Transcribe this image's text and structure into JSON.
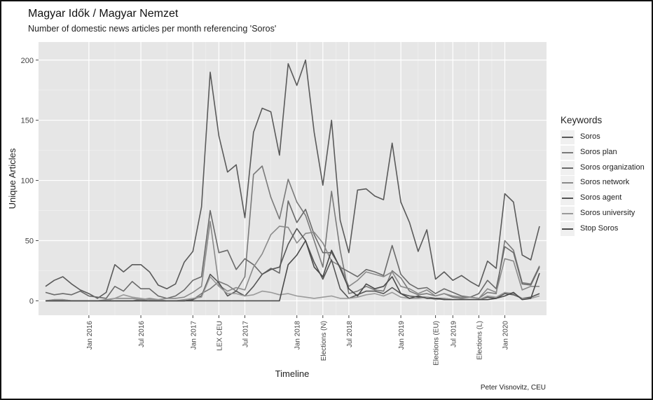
{
  "header": {
    "title": "Magyar Idők / Magyar Nemzet",
    "subtitle": "Number of domestic news articles per month referencing 'Soros'"
  },
  "credit": "Peter Visnovitz, CEU",
  "chart_data": {
    "type": "line",
    "title": "Magyar Idők / Magyar Nemzet",
    "subtitle": "Number of domestic news articles per month referencing 'Soros'",
    "xlabel": "Timeline",
    "ylabel": "Unique Articles",
    "ylim": [
      -12,
      215
    ],
    "yticks": [
      0,
      50,
      100,
      150,
      200
    ],
    "grid": true,
    "legend": {
      "title": "Keywords",
      "position": "right"
    },
    "x_tick_labels": [
      "Jan 2016",
      "Jul 2016",
      "Jan 2017",
      "LEX CEU",
      "Jul 2017",
      "Jan 2018",
      "Elections (N)",
      "Jul 2018",
      "Jan 2019",
      "Elections (EU)",
      "Jul 2019",
      "Elections (L)",
      "Jan 2020"
    ],
    "x_tick_pos": [
      5,
      11,
      17,
      20,
      23,
      29,
      32,
      35,
      41,
      45,
      47,
      50,
      53
    ],
    "x": [
      "Aug 2015",
      "Sep 2015",
      "Oct 2015",
      "Nov 2015",
      "Dec 2015",
      "Jan 2016",
      "Feb 2016",
      "Mar 2016",
      "Apr 2016",
      "May 2016",
      "Jun 2016",
      "Jul 2016",
      "Aug 2016",
      "Sep 2016",
      "Oct 2016",
      "Nov 2016",
      "Dec 2016",
      "Jan 2017",
      "Feb 2017",
      "Mar 2017",
      "Apr 2017",
      "May 2017",
      "Jun 2017",
      "Jul 2017",
      "Aug 2017",
      "Sep 2017",
      "Oct 2017",
      "Nov 2017",
      "Dec 2017",
      "Jan 2018",
      "Feb 2018",
      "Mar 2018",
      "Apr 2018",
      "May 2018",
      "Jun 2018",
      "Jul 2018",
      "Aug 2018",
      "Sep 2018",
      "Oct 2018",
      "Nov 2018",
      "Dec 2018",
      "Jan 2019",
      "Feb 2019",
      "Mar 2019",
      "Apr 2019",
      "May 2019",
      "Jun 2019",
      "Jul 2019",
      "Aug 2019",
      "Sep 2019",
      "Oct 2019",
      "Nov 2019",
      "Dec 2019",
      "Jan 2020",
      "Feb 2020",
      "Mar 2020",
      "Apr 2020",
      "May 2020"
    ],
    "series": [
      {
        "name": "Soros",
        "color": "#5a5a5a",
        "values": [
          12,
          17,
          20,
          14,
          9,
          6,
          2,
          7,
          30,
          24,
          30,
          30,
          24,
          13,
          10,
          14,
          32,
          41,
          78,
          190,
          137,
          107,
          113,
          69,
          140,
          160,
          157,
          121,
          197,
          179,
          200,
          140,
          96,
          150,
          67,
          40,
          92,
          93,
          87,
          84,
          131,
          82,
          65,
          41,
          59,
          18,
          24,
          17,
          21,
          16,
          12,
          33,
          27,
          89,
          82,
          38,
          34,
          62
        ]
      },
      {
        "name": "Soros plan",
        "color": "#7a7a7a",
        "values": [
          0,
          0,
          0,
          0,
          0,
          0,
          0,
          0,
          0,
          0,
          0,
          1,
          0,
          0,
          0,
          0,
          0,
          1,
          6,
          10,
          16,
          13,
          8,
          20,
          105,
          112,
          86,
          68,
          101,
          82,
          71,
          50,
          28,
          91,
          42,
          6,
          8,
          12,
          9,
          8,
          25,
          19,
          8,
          5,
          6,
          4,
          6,
          3,
          2,
          3,
          2,
          7,
          6,
          50,
          42,
          15,
          14,
          29
        ]
      },
      {
        "name": "Soros organization",
        "color": "#6a6a6a",
        "values": [
          7,
          5,
          6,
          5,
          8,
          4,
          3,
          2,
          12,
          8,
          16,
          10,
          10,
          4,
          2,
          4,
          9,
          17,
          20,
          75,
          40,
          42,
          26,
          35,
          30,
          22,
          27,
          23,
          83,
          65,
          76,
          55,
          40,
          40,
          28,
          24,
          20,
          26,
          24,
          21,
          46,
          22,
          14,
          10,
          11,
          6,
          10,
          7,
          4,
          3,
          6,
          17,
          10,
          45,
          40,
          14,
          13,
          28
        ]
      },
      {
        "name": "Soros network",
        "color": "#8a8a8a",
        "values": [
          0,
          1,
          1,
          0,
          0,
          0,
          0,
          1,
          2,
          2,
          2,
          1,
          2,
          1,
          2,
          2,
          3,
          7,
          12,
          66,
          13,
          8,
          11,
          9,
          28,
          39,
          55,
          62,
          61,
          48,
          56,
          57,
          48,
          33,
          29,
          12,
          17,
          24,
          22,
          20,
          24,
          12,
          10,
          6,
          9,
          4,
          6,
          4,
          3,
          3,
          2,
          10,
          7,
          35,
          33,
          9,
          12,
          12
        ]
      },
      {
        "name": "Soros agent",
        "color": "#555555",
        "values": [
          0,
          0,
          0,
          0,
          0,
          0,
          0,
          0,
          0,
          0,
          0,
          0,
          0,
          0,
          0,
          0,
          0,
          1,
          4,
          22,
          15,
          4,
          8,
          4,
          12,
          22,
          26,
          28,
          47,
          60,
          50,
          32,
          18,
          34,
          10,
          2,
          5,
          8,
          8,
          6,
          11,
          6,
          4,
          3,
          3,
          2,
          2,
          1,
          1,
          1,
          1,
          3,
          2,
          6,
          5,
          2,
          3,
          6
        ]
      },
      {
        "name": "Soros university",
        "color": "#9a9a9a",
        "values": [
          0,
          1,
          1,
          0,
          0,
          0,
          0,
          0,
          2,
          5,
          3,
          2,
          1,
          1,
          0,
          0,
          1,
          2,
          3,
          20,
          12,
          6,
          6,
          4,
          5,
          8,
          7,
          5,
          6,
          4,
          3,
          2,
          3,
          4,
          2,
          2,
          3,
          5,
          6,
          4,
          7,
          3,
          2,
          2,
          3,
          1,
          2,
          1,
          1,
          1,
          1,
          4,
          3,
          7,
          6,
          2,
          2,
          4
        ]
      },
      {
        "name": "Stop Soros",
        "color": "#4a4a4a",
        "values": [
          0,
          0,
          0,
          0,
          0,
          0,
          0,
          0,
          0,
          0,
          0,
          0,
          0,
          0,
          0,
          0,
          0,
          0,
          0,
          0,
          0,
          0,
          0,
          0,
          0,
          0,
          0,
          0,
          30,
          38,
          50,
          28,
          20,
          42,
          27,
          10,
          4,
          14,
          10,
          12,
          20,
          6,
          2,
          4,
          2,
          2,
          1,
          1,
          1,
          1,
          1,
          1,
          2,
          4,
          7,
          1,
          2,
          23
        ]
      }
    ]
  }
}
